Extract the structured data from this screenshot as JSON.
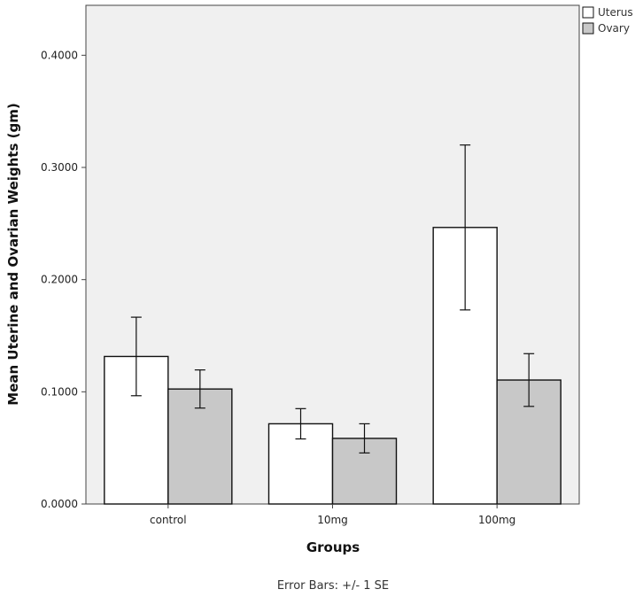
{
  "chart_data": {
    "type": "bar",
    "title": "",
    "xlabel": "Groups",
    "ylabel": "Mean Uterine and Ovarian Weights (gm)",
    "categories": [
      "control",
      "10mg",
      "100mg"
    ],
    "series": [
      {
        "name": "Uterus",
        "values": [
          0.1315,
          0.0715,
          0.2465
        ],
        "err": [
          0.035,
          0.0135,
          0.0735
        ]
      },
      {
        "name": "Ovary",
        "values": [
          0.1025,
          0.0585,
          0.1105
        ],
        "err": [
          0.017,
          0.013,
          0.0235
        ]
      }
    ],
    "ylim": [
      0,
      0.4445
    ],
    "yticks": [
      "0.0000",
      "0.1000",
      "0.2000",
      "0.3000",
      "0.4000"
    ],
    "ytick_values": [
      0,
      0.1,
      0.2,
      0.3,
      0.4
    ],
    "legend_position": "top-right",
    "grid": false,
    "colors": {
      "Uterus": "#ffffff",
      "Ovary": "#c8c8c8",
      "plot_bg": "#f0f0f0"
    },
    "footnote": "Error Bars: +/- 1 SE"
  }
}
